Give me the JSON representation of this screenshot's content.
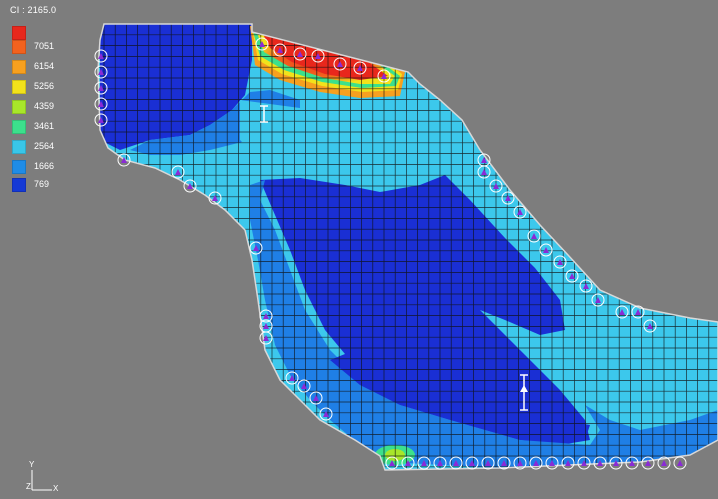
{
  "legend": {
    "title": "CI : 2165.0",
    "items": [
      {
        "label": "",
        "color": "#e8271c"
      },
      {
        "label": "7051",
        "color": "#f2621e"
      },
      {
        "label": "6154",
        "color": "#f7a01f"
      },
      {
        "label": "5256",
        "color": "#f2e21b"
      },
      {
        "label": "4359",
        "color": "#a8e62a"
      },
      {
        "label": "3461",
        "color": "#3ce08c"
      },
      {
        "label": "2564",
        "color": "#39c6e8"
      },
      {
        "label": "1666",
        "color": "#1f8ce6"
      },
      {
        "label": "769",
        "color": "#1439d6"
      }
    ]
  },
  "axis": {
    "y_label": "Y",
    "z_label": "Z",
    "x_label": "X"
  },
  "colors": {
    "background": "#7d7d7d",
    "deep_blue": "#1a2fd4",
    "mid_blue": "#1f7fe6",
    "light_cyan": "#3cc8ec",
    "hot_red": "#e8271c",
    "grid_line": "#111111",
    "boundary_marker": "#8a2bd6"
  },
  "icons": {
    "boundary_marker": "triangle-in-circle-icon",
    "well": "well-icon",
    "axis": "axis-triad-icon"
  }
}
